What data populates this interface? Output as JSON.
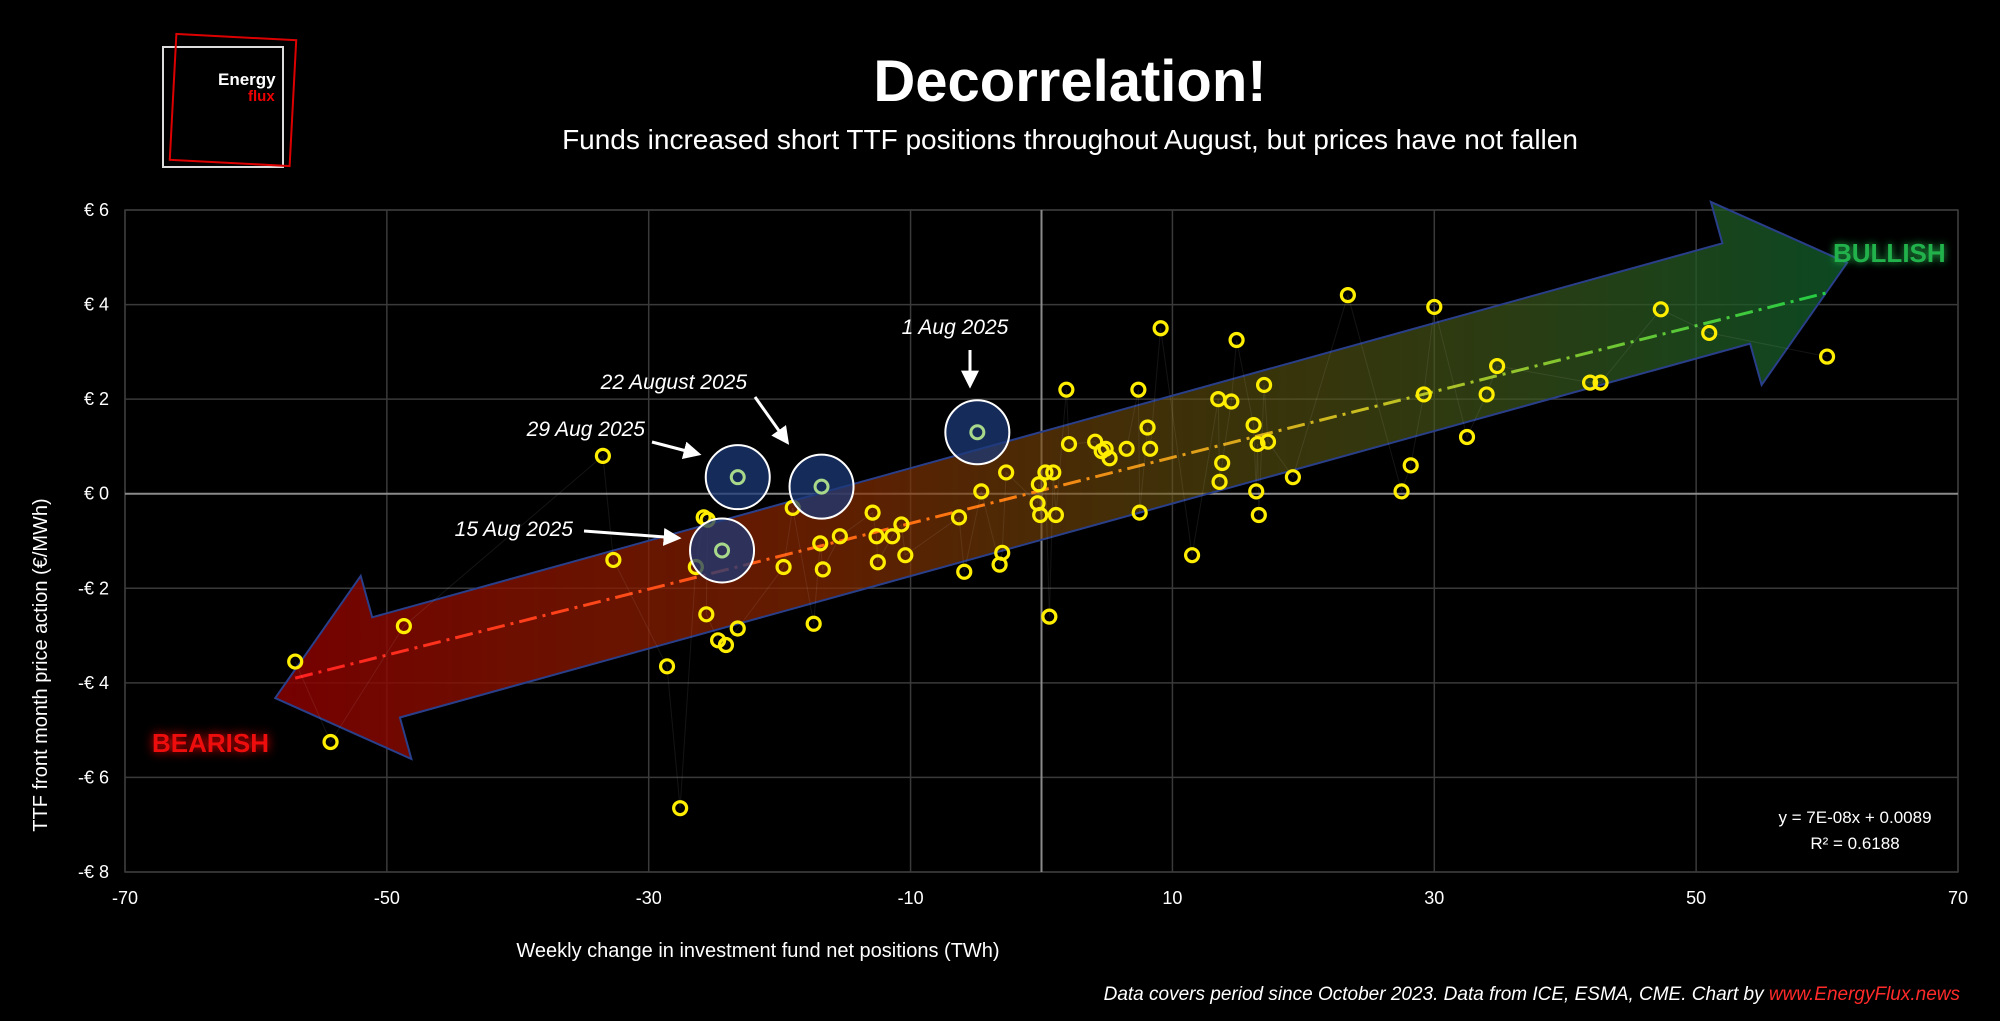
{
  "title": "Decorrelation!",
  "subtitle": "Funds increased short TTF positions throughout August, but prices have not fallen",
  "logo": {
    "line1": "Energy",
    "line2": "flux"
  },
  "footer": {
    "text": "Data covers period since October 2023. Data from ICE, ESMA, CME. Chart by ",
    "source": "www.EnergyFlux.news"
  },
  "colors": {
    "background": "#000000",
    "marker": "#ffee00",
    "bullish": "#22b24c",
    "bearish": "#ee1111",
    "highlight": "#1c3a78"
  },
  "chart_data": {
    "type": "scatter",
    "xlabel": "Weekly change in investment fund net positions (TWh)",
    "ylabel": "TTF front month price action (€/MWh)",
    "xlim": [
      -70,
      70
    ],
    "ylim": [
      -8,
      6
    ],
    "xticks": [
      -70,
      -50,
      -30,
      -10,
      10,
      30,
      50,
      70
    ],
    "yticks": [
      6,
      4,
      2,
      0,
      -2,
      -4,
      -6,
      -8
    ],
    "ytick_labels": [
      "€ 6",
      "€ 4",
      "€ 2",
      "€ 0",
      "-€ 2",
      "-€ 4",
      "-€ 6",
      "-€ 8"
    ],
    "grid": true,
    "equation": "y = 7E-08x + 0.0089",
    "r_squared": "R² = 0.6188",
    "bullish_label": "BULLISH",
    "bearish_label": "BEARISH",
    "trendline": {
      "x_start": -57,
      "x_end": 60,
      "y_start": -3.9,
      "y_end": 4.25
    },
    "points": [
      [
        -57,
        -3.55
      ],
      [
        -54.3,
        -5.25
      ],
      [
        -48.7,
        -2.8
      ],
      [
        -33.5,
        0.8
      ],
      [
        -32.7,
        -1.4
      ],
      [
        -28.6,
        -3.65
      ],
      [
        -27.6,
        -6.65
      ],
      [
        -26.4,
        -1.55
      ],
      [
        -25.8,
        -0.5
      ],
      [
        -25.5,
        -0.55
      ],
      [
        -25.6,
        -2.55
      ],
      [
        -24.7,
        -3.1
      ],
      [
        -24.1,
        -3.2
      ],
      [
        -23.2,
        -2.85
      ],
      [
        -19.7,
        -1.55
      ],
      [
        -19,
        -0.3
      ],
      [
        -17.4,
        -2.75
      ],
      [
        -16.9,
        -1.05
      ],
      [
        -16.7,
        -1.6
      ],
      [
        -15.4,
        -0.9
      ],
      [
        -12.9,
        -0.4
      ],
      [
        -12.6,
        -0.9
      ],
      [
        -12.5,
        -1.45
      ],
      [
        -11.4,
        -0.9
      ],
      [
        -10.7,
        -0.65
      ],
      [
        -10.4,
        -1.3
      ],
      [
        -6.3,
        -0.5
      ],
      [
        -5.9,
        -1.65
      ],
      [
        -4.6,
        0.05
      ],
      [
        -3.2,
        -1.5
      ],
      [
        -3,
        -1.25
      ],
      [
        -2.7,
        0.45
      ],
      [
        -0.3,
        -0.2
      ],
      [
        -0.2,
        0.2
      ],
      [
        -0.1,
        -0.45
      ],
      [
        0.3,
        0.45
      ],
      [
        0.6,
        -2.6
      ],
      [
        0.9,
        0.45
      ],
      [
        1.1,
        -0.45
      ],
      [
        1.9,
        2.2
      ],
      [
        2.1,
        1.05
      ],
      [
        4.1,
        1.1
      ],
      [
        4.6,
        0.9
      ],
      [
        4.9,
        0.95
      ],
      [
        5.2,
        0.75
      ],
      [
        6.5,
        0.95
      ],
      [
        7.4,
        2.2
      ],
      [
        7.5,
        -0.4
      ],
      [
        8.1,
        1.4
      ],
      [
        8.3,
        0.95
      ],
      [
        9.1,
        3.5
      ],
      [
        11.5,
        -1.3
      ],
      [
        13.5,
        2.0
      ],
      [
        13.6,
        0.25
      ],
      [
        13.8,
        0.65
      ],
      [
        14.5,
        1.95
      ],
      [
        14.9,
        3.25
      ],
      [
        16.2,
        1.45
      ],
      [
        16.4,
        0.05
      ],
      [
        16.5,
        1.05
      ],
      [
        16.6,
        -0.45
      ],
      [
        17,
        2.3
      ],
      [
        17.3,
        1.1
      ],
      [
        19.2,
        0.35
      ],
      [
        23.4,
        4.2
      ],
      [
        27.5,
        0.05
      ],
      [
        28.2,
        0.6
      ],
      [
        29.2,
        2.1
      ],
      [
        30,
        3.95
      ],
      [
        32.5,
        1.2
      ],
      [
        34,
        2.1
      ],
      [
        34.8,
        2.7
      ],
      [
        41.9,
        2.35
      ],
      [
        42.7,
        2.35
      ],
      [
        47.3,
        3.9
      ],
      [
        51,
        3.4
      ],
      [
        60,
        2.9
      ]
    ],
    "highlights": [
      {
        "label": "1 Aug 2025",
        "x": -4.9,
        "y": 1.3
      },
      {
        "label": "22 August 2025",
        "x": -16.8,
        "y": 0.15
      },
      {
        "label": "29 Aug 2025",
        "x": -23.2,
        "y": 0.35
      },
      {
        "label": "15 Aug 2025",
        "x": -24.4,
        "y": -1.2
      }
    ]
  }
}
